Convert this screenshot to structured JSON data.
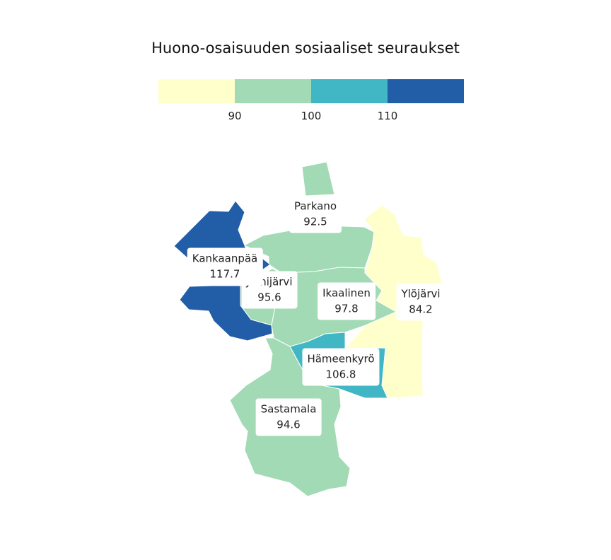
{
  "title": "Huono-osaisuuden sosiaaliset seuraukset",
  "legend": {
    "bins": [
      {
        "color": "#ffffcc"
      },
      {
        "color": "#a1dab4"
      },
      {
        "color": "#41b6c4"
      },
      {
        "color": "#225ea8"
      }
    ],
    "ticks": [
      "90",
      "100",
      "110"
    ]
  },
  "regions": [
    {
      "name": "Parkano",
      "value": "92.5",
      "color": "#a1dab4"
    },
    {
      "name": "Kankaanpää",
      "value": "117.7",
      "color": "#225ea8"
    },
    {
      "name": "Jämijärvi",
      "value": "95.6",
      "color": "#a1dab4"
    },
    {
      "name": "Ikaalinen",
      "value": "97.8",
      "color": "#a1dab4"
    },
    {
      "name": "Ylöjärvi",
      "value": "84.2",
      "color": "#ffffcc"
    },
    {
      "name": "Hämeenkyrö",
      "value": "106.8",
      "color": "#41b6c4"
    },
    {
      "name": "Sastamala",
      "value": "94.6",
      "color": "#a1dab4"
    }
  ]
}
